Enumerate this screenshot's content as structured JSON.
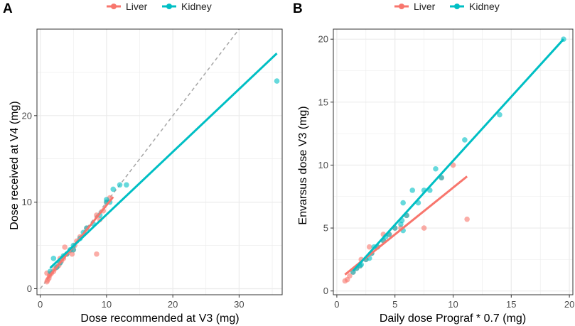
{
  "colors": {
    "liver": "#F8766D",
    "kidney": "#00BFC4",
    "grid": "#EBEBEB",
    "frame": "#333333",
    "identity": "#A6A6A6"
  },
  "chart_data": [
    {
      "panel": "A",
      "type": "scatter",
      "legend": {
        "position": "top",
        "entries": [
          "Liver",
          "Kidney"
        ]
      },
      "xlabel": "Dose recommended at V3 (mg)",
      "ylabel": "Dose received at V4 (mg)",
      "xlim": [
        -0.5,
        36.5
      ],
      "ylim": [
        -0.7,
        30
      ],
      "xticks": [
        0,
        10,
        20,
        30
      ],
      "yticks": [
        0,
        10,
        20
      ],
      "identity_line": true,
      "series": [
        {
          "name": "Liver",
          "points": [
            [
              1,
              0.8
            ],
            [
              1.1,
              1
            ],
            [
              1.3,
              1.2
            ],
            [
              1.4,
              1.5
            ],
            [
              1.5,
              1.7
            ],
            [
              1.7,
              1.8
            ],
            [
              2,
              2
            ],
            [
              2.2,
              2.3
            ],
            [
              2.5,
              2.5
            ],
            [
              2.8,
              2.7
            ],
            [
              3,
              3
            ],
            [
              3.2,
              3.2
            ],
            [
              3.5,
              3.5
            ],
            [
              3.7,
              4.8
            ],
            [
              4,
              4
            ],
            [
              4.5,
              4.4
            ],
            [
              5,
              4.5
            ],
            [
              5.2,
              5
            ],
            [
              5.5,
              5.5
            ],
            [
              6,
              6
            ],
            [
              7,
              7
            ],
            [
              8.5,
              8.5
            ],
            [
              9,
              8
            ],
            [
              9.5,
              9
            ],
            [
              10,
              10
            ],
            [
              10.5,
              10.5
            ],
            [
              8.5,
              4
            ],
            [
              1,
              1.8
            ],
            [
              3,
              3.5
            ],
            [
              4.8,
              4
            ]
          ],
          "fit": [
            [
              1,
              1.1
            ],
            [
              11,
              10.6
            ]
          ]
        },
        {
          "name": "Kidney",
          "points": [
            [
              1.5,
              2
            ],
            [
              2,
              3.5
            ],
            [
              2.5,
              2.5
            ],
            [
              3,
              3
            ],
            [
              3.5,
              3.8
            ],
            [
              4,
              4
            ],
            [
              4.5,
              4.5
            ],
            [
              5,
              5
            ],
            [
              5,
              4.5
            ],
            [
              6,
              5.8
            ],
            [
              6.5,
              6.5
            ],
            [
              7,
              7
            ],
            [
              8,
              7.5
            ],
            [
              9,
              8.5
            ],
            [
              10,
              10
            ],
            [
              10,
              10.3
            ],
            [
              10.5,
              10
            ],
            [
              11,
              11.5
            ],
            [
              12,
              12
            ],
            [
              13,
              12
            ],
            [
              35.7,
              24
            ]
          ],
          "fit": [
            [
              1.5,
              2.4
            ],
            [
              35.7,
              27.2
            ]
          ]
        }
      ]
    },
    {
      "panel": "B",
      "type": "scatter",
      "legend": {
        "position": "top",
        "entries": [
          "Liver",
          "Kidney"
        ]
      },
      "xlabel": "Daily dose Prograf * 0.7 (mg)",
      "ylabel": "Envarsus dose V3 (mg)",
      "xlim": [
        -0.3,
        20.3
      ],
      "ylim": [
        -0.3,
        20.8
      ],
      "xticks": [
        0,
        5,
        10,
        15,
        20
      ],
      "yticks": [
        0,
        5,
        10,
        15,
        20
      ],
      "identity_line": false,
      "series": [
        {
          "name": "Liver",
          "points": [
            [
              0.7,
              0.8
            ],
            [
              0.9,
              0.9
            ],
            [
              1.1,
              1.2
            ],
            [
              1.4,
              1.5
            ],
            [
              1.7,
              1.8
            ],
            [
              2,
              2
            ],
            [
              2.1,
              2.5
            ],
            [
              2.5,
              2.5
            ],
            [
              2.8,
              3.5
            ],
            [
              3,
              3
            ],
            [
              3.5,
              3.5
            ],
            [
              4,
              4
            ],
            [
              4,
              4.5
            ],
            [
              4.5,
              4.5
            ],
            [
              5,
              5
            ],
            [
              5.5,
              5
            ],
            [
              6,
              6
            ],
            [
              7.5,
              5
            ],
            [
              9,
              9
            ],
            [
              10,
              10
            ],
            [
              11.2,
              5.7
            ]
          ],
          "fit": [
            [
              0.7,
              1.3
            ],
            [
              11.2,
              9.1
            ]
          ]
        },
        {
          "name": "Kidney",
          "points": [
            [
              1.4,
              1.5
            ],
            [
              1.7,
              1.8
            ],
            [
              2,
              2
            ],
            [
              2.1,
              2.1
            ],
            [
              2.5,
              2.5
            ],
            [
              2.8,
              2.6
            ],
            [
              3,
              3
            ],
            [
              3.2,
              3.5
            ],
            [
              3.5,
              3.5
            ],
            [
              4,
              4
            ],
            [
              4.2,
              4.3
            ],
            [
              4.5,
              4.5
            ],
            [
              5,
              5
            ],
            [
              5.5,
              5.3
            ],
            [
              5.6,
              5.6
            ],
            [
              5.7,
              4.8
            ],
            [
              5.7,
              7
            ],
            [
              6,
              6
            ],
            [
              6.5,
              8
            ],
            [
              7,
              7
            ],
            [
              7.5,
              8
            ],
            [
              8,
              8
            ],
            [
              8.5,
              9.7
            ],
            [
              9,
              9
            ],
            [
              11,
              12
            ],
            [
              14,
              14
            ],
            [
              19.5,
              20
            ]
          ],
          "fit": [
            [
              1.4,
              1.6
            ],
            [
              19.5,
              20
            ]
          ]
        }
      ]
    }
  ]
}
